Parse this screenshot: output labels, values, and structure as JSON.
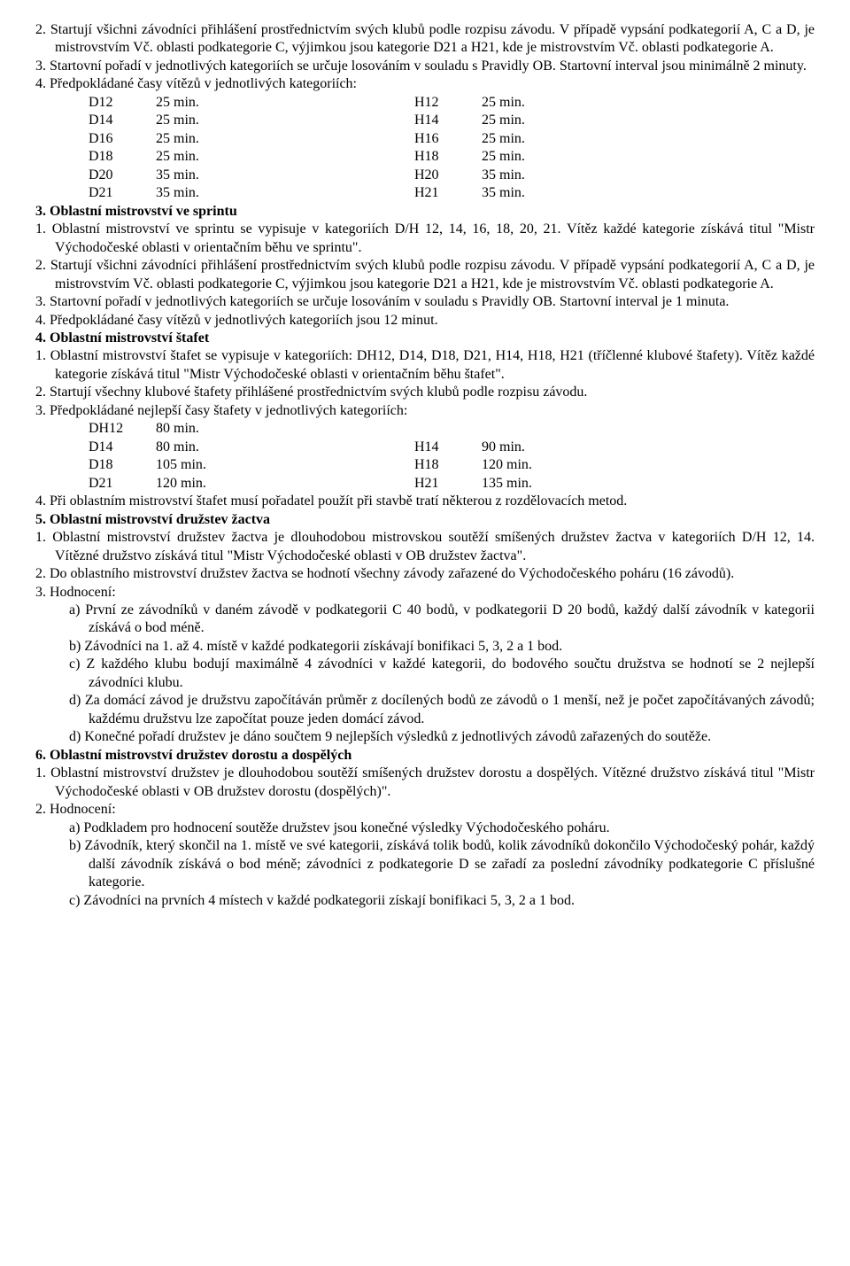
{
  "s2": {
    "p2": "2. Startují všichni závodníci přihlášení prostřednictvím svých klubů podle rozpisu závodu. V případě vypsání podkategorií A, C a D, je mistrovstvím Vč. oblasti podkategorie C, výjimkou jsou kategorie D21 a H21, kde je mistrovstvím Vč. oblasti podkategorie A.",
    "p3": "3. Startovní pořadí v jednotlivých kategoriích se určuje losováním v souladu s Pravidly OB. Startovní interval jsou minimálně 2 minuty.",
    "p4": "4. Předpokládané časy vítězů v jednotlivých kategoriích:",
    "times": [
      {
        "cd": "D12",
        "dv": "25 min.",
        "ch": "H12",
        "hv": "25 min."
      },
      {
        "cd": "D14",
        "dv": "25 min.",
        "ch": "H14",
        "hv": "25 min."
      },
      {
        "cd": "D16",
        "dv": "25 min.",
        "ch": "H16",
        "hv": "25 min."
      },
      {
        "cd": "D18",
        "dv": "25 min.",
        "ch": "H18",
        "hv": "25 min."
      },
      {
        "cd": "D20",
        "dv": "35 min.",
        "ch": "H20",
        "hv": "35 min."
      },
      {
        "cd": "D21",
        "dv": "35 min.",
        "ch": "H21",
        "hv": "35 min."
      }
    ]
  },
  "s3": {
    "title": "3. Oblastní mistrovství ve sprintu",
    "p1": "1. Oblastní mistrovství ve sprintu se vypisuje v kategoriích D/H 12, 14, 16, 18, 20, 21. Vítěz každé kategorie získává titul \"Mistr Východočeské oblasti v orientačním běhu ve sprintu\".",
    "p2": "2. Startují všichni závodníci přihlášení prostřednictvím svých klubů podle rozpisu závodu. V případě vypsání podkategorií A, C a D, je mistrovstvím Vč. oblasti podkategorie C, výjimkou jsou kategorie D21 a H21, kde je mistrovstvím Vč. oblasti podkategorie A.",
    "p3": "3. Startovní pořadí v jednotlivých kategoriích se určuje losováním v souladu s Pravidly OB. Startovní interval je 1 minuta.",
    "p4": "4. Předpokládané časy vítězů v jednotlivých kategoriích jsou 12 minut."
  },
  "s4": {
    "title": "4. Oblastní mistrovství štafet",
    "p1": "1. Oblastní mistrovství štafet se vypisuje v kategoriích: DH12, D14, D18, D21, H14, H18, H21 (tříčlenné klubové štafety). Vítěz každé kategorie získává titul \"Mistr Východočeské oblasti v orientačním běhu štafet\".",
    "p2": "2. Startují všechny klubové štafety přihlášené prostřednictvím svých klubů podle rozpisu závodu.",
    "p3": "3. Předpokládané nejlepší časy štafety v jednotlivých kategoriích:",
    "times": [
      {
        "cd": "DH12",
        "dv": "80 min.",
        "ch": "",
        "hv": ""
      },
      {
        "cd": "D14",
        "dv": "80 min.",
        "ch": "H14",
        "hv": "90 min."
      },
      {
        "cd": "D18",
        "dv": "105 min.",
        "ch": "H18",
        "hv": "120 min."
      },
      {
        "cd": "D21",
        "dv": "120 min.",
        "ch": "H21",
        "hv": "135 min."
      }
    ],
    "p4": "4. Při oblastním mistrovství štafet musí pořadatel použít při stavbě tratí některou z rozdělovacích metod."
  },
  "s5": {
    "title": "5. Oblastní mistrovství družstev žactva",
    "p1": "1. Oblastní mistrovství družstev žactva je dlouhodobou mistrovskou soutěží smíšených družstev žactva v kategoriích D/H 12, 14. Vítězné družstvo získává titul \"Mistr Východočeské oblasti v OB družstev žactva\".",
    "p2": "2. Do oblastního mistrovství družstev žactva se hodnotí všechny závody zařazené do Východočeského poháru (16 závodů).",
    "p3": "3. Hodnocení:",
    "a": "a) První ze závodníků v daném závodě v podkategorii C 40 bodů, v podkategorii D 20 bodů, každý další závodník v kategorii získává o bod méně.",
    "b": "b) Závodníci na 1. až 4. místě v každé podkategorii získávají bonifikaci 5, 3, 2 a 1 bod.",
    "c": "c) Z každého klubu bodují maximálně 4 závodníci v každé kategorii, do bodového součtu družstva se hodnotí se 2 nejlepší závodníci klubu.",
    "d": "d) Za domácí závod je družstvu započítáván průměr z docílených bodů ze závodů o 1 menší, než je počet započítávaných závodů; každému družstvu lze započítat pouze jeden domácí závod.",
    "e": "d) Konečné pořadí družstev je dáno součtem 9 nejlepších výsledků z jednotlivých závodů zařazených do soutěže."
  },
  "s6": {
    "title": "6. Oblastní mistrovství družstev dorostu a dospělých",
    "p1": "1. Oblastní mistrovství družstev je dlouhodobou soutěží smíšených družstev dorostu a dospělých. Vítězné družstvo získává titul \"Mistr Východočeské oblasti v OB družstev dorostu (dospělých)\".",
    "p2": "2. Hodnocení:",
    "a": "a) Podkladem pro hodnocení soutěže družstev jsou konečné výsledky Východočeského poháru.",
    "b": "b) Závodník, který skončil na 1. místě ve své kategorii, získává tolik bodů, kolik závodníků dokončilo Východočeský pohár, každý další závodník získává o bod méně; závodníci z podkategorie D se zařadí za poslední závodníky podkategorie C příslušné kategorie.",
    "c": "c) Závodníci na prvních 4 místech v každé podkategorii získají bonifikaci 5, 3, 2 a 1 bod."
  }
}
